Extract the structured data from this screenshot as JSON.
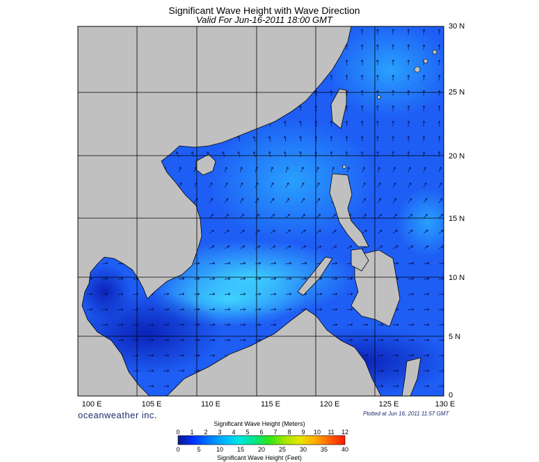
{
  "title": "Significant Wave Height with Wave Direction",
  "subtitle": "Valid For Jun-16-2011 18:00 GMT",
  "lat_labels": [
    "30 N",
    "25 N",
    "20 N",
    "15 N",
    "10 N",
    "5 N",
    "0"
  ],
  "lon_labels": [
    "100 E",
    "105 E",
    "110 E",
    "115 E",
    "120 E",
    "125 E",
    "130 E"
  ],
  "brand": "oceanweather inc.",
  "plotted_note": "Plotted at Jun 16, 2011 11:57 GMT",
  "legend": {
    "meters_title": "Significant Wave Height (Meters)",
    "feet_title": "Significant Wave Height (Feet)",
    "meters_ticks": [
      "0",
      "1",
      "2",
      "3",
      "4",
      "5",
      "6",
      "7",
      "8",
      "9",
      "10",
      "11",
      "12"
    ],
    "feet_ticks": [
      "0",
      "5",
      "10",
      "15",
      "20",
      "25",
      "30",
      "35",
      "40"
    ],
    "color_stops": [
      "#0a1a8c",
      "#0033ff",
      "#0077ff",
      "#00b4ff",
      "#00e5e5",
      "#00e58c",
      "#2de51a",
      "#a0e500",
      "#e5e500",
      "#ffb000",
      "#ff6000",
      "#ff1a00"
    ]
  },
  "colors": {
    "land": "#c0c0c0",
    "sea_low": "#1533e0",
    "sea_mid": "#1a78ff",
    "sea_high": "#2fc8ff",
    "grid": "#000000"
  }
}
